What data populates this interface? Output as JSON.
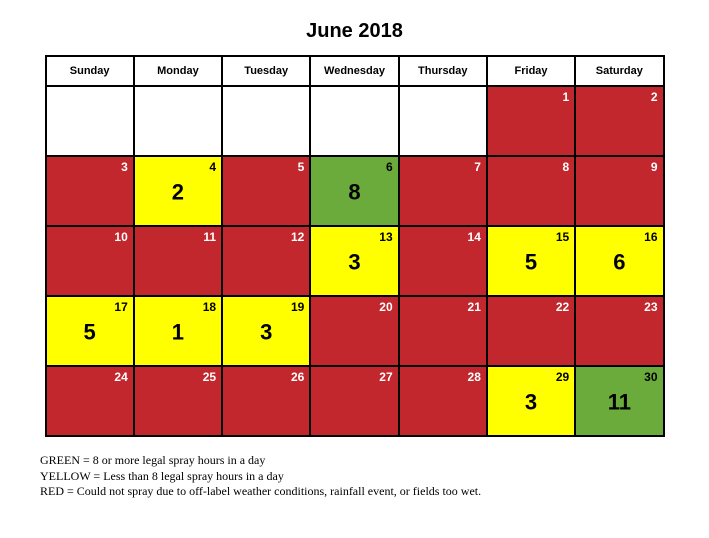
{
  "title": "June 2018",
  "colors": {
    "red": "#c1272d",
    "yellow": "#ffff00",
    "green": "#6aab3b",
    "white": "#ffffff",
    "blackText": "#000000",
    "whiteText": "#ffffff"
  },
  "weekdays": [
    "Sunday",
    "Monday",
    "Tuesday",
    "Wednesday",
    "Thursday",
    "Friday",
    "Saturday"
  ],
  "weeks": [
    [
      {
        "day": "",
        "bg": "white",
        "value": "",
        "dayColor": "blackText"
      },
      {
        "day": "",
        "bg": "white",
        "value": "",
        "dayColor": "blackText"
      },
      {
        "day": "",
        "bg": "white",
        "value": "",
        "dayColor": "blackText"
      },
      {
        "day": "",
        "bg": "white",
        "value": "",
        "dayColor": "blackText"
      },
      {
        "day": "",
        "bg": "white",
        "value": "",
        "dayColor": "blackText"
      },
      {
        "day": "1",
        "bg": "red",
        "value": "",
        "dayColor": "whiteText"
      },
      {
        "day": "2",
        "bg": "red",
        "value": "",
        "dayColor": "whiteText"
      }
    ],
    [
      {
        "day": "3",
        "bg": "red",
        "value": "",
        "dayColor": "whiteText"
      },
      {
        "day": "4",
        "bg": "yellow",
        "value": "2",
        "dayColor": "blackText"
      },
      {
        "day": "5",
        "bg": "red",
        "value": "",
        "dayColor": "whiteText"
      },
      {
        "day": "6",
        "bg": "green",
        "value": "8",
        "dayColor": "blackText"
      },
      {
        "day": "7",
        "bg": "red",
        "value": "",
        "dayColor": "whiteText"
      },
      {
        "day": "8",
        "bg": "red",
        "value": "",
        "dayColor": "whiteText"
      },
      {
        "day": "9",
        "bg": "red",
        "value": "",
        "dayColor": "whiteText"
      }
    ],
    [
      {
        "day": "10",
        "bg": "red",
        "value": "",
        "dayColor": "whiteText"
      },
      {
        "day": "11",
        "bg": "red",
        "value": "",
        "dayColor": "whiteText"
      },
      {
        "day": "12",
        "bg": "red",
        "value": "",
        "dayColor": "whiteText"
      },
      {
        "day": "13",
        "bg": "yellow",
        "value": "3",
        "dayColor": "blackText"
      },
      {
        "day": "14",
        "bg": "red",
        "value": "",
        "dayColor": "whiteText"
      },
      {
        "day": "15",
        "bg": "yellow",
        "value": "5",
        "dayColor": "blackText"
      },
      {
        "day": "16",
        "bg": "yellow",
        "value": "6",
        "dayColor": "blackText"
      }
    ],
    [
      {
        "day": "17",
        "bg": "yellow",
        "value": "5",
        "dayColor": "blackText"
      },
      {
        "day": "18",
        "bg": "yellow",
        "value": "1",
        "dayColor": "blackText"
      },
      {
        "day": "19",
        "bg": "yellow",
        "value": "3",
        "dayColor": "blackText"
      },
      {
        "day": "20",
        "bg": "red",
        "value": "",
        "dayColor": "whiteText"
      },
      {
        "day": "21",
        "bg": "red",
        "value": "",
        "dayColor": "whiteText"
      },
      {
        "day": "22",
        "bg": "red",
        "value": "",
        "dayColor": "whiteText"
      },
      {
        "day": "23",
        "bg": "red",
        "value": "",
        "dayColor": "whiteText"
      }
    ],
    [
      {
        "day": "24",
        "bg": "red",
        "value": "",
        "dayColor": "whiteText"
      },
      {
        "day": "25",
        "bg": "red",
        "value": "",
        "dayColor": "whiteText"
      },
      {
        "day": "26",
        "bg": "red",
        "value": "",
        "dayColor": "whiteText"
      },
      {
        "day": "27",
        "bg": "red",
        "value": "",
        "dayColor": "whiteText"
      },
      {
        "day": "28",
        "bg": "red",
        "value": "",
        "dayColor": "whiteText"
      },
      {
        "day": "29",
        "bg": "yellow",
        "value": "3",
        "dayColor": "blackText"
      },
      {
        "day": "30",
        "bg": "green",
        "value": "11",
        "dayColor": "blackText"
      }
    ]
  ],
  "legend": {
    "line1": "GREEN = 8 or more legal spray hours in a day",
    "line2": "YELLOW = Less than 8 legal spray hours in a day",
    "line3": "RED = Could not spray due to off-label weather conditions, rainfall event, or fields too wet."
  }
}
